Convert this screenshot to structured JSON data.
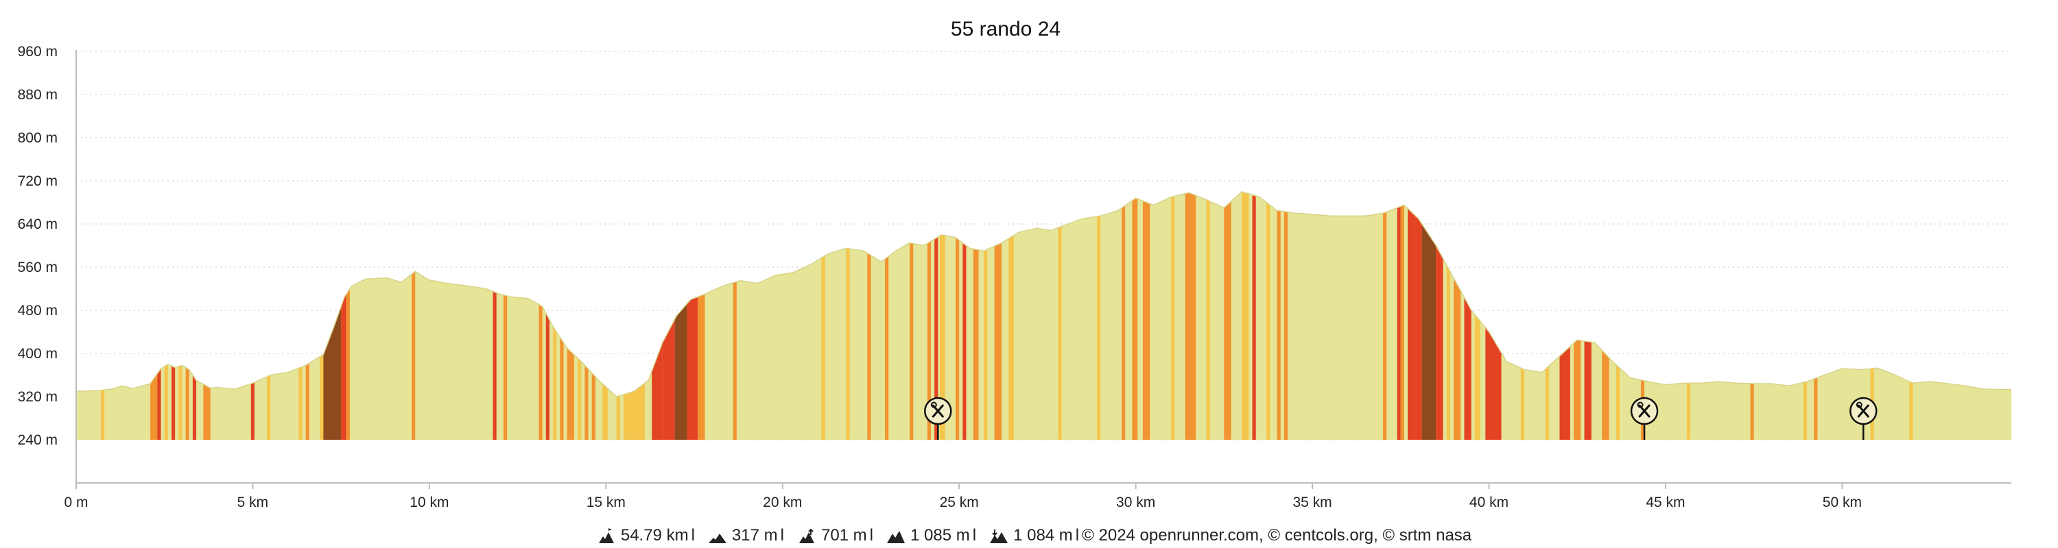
{
  "chart_data": {
    "type": "area",
    "title": "55 rando 24",
    "xlabel": "",
    "ylabel": "",
    "xlim": [
      0,
      54.79
    ],
    "ylim": [
      240,
      960
    ],
    "y_ticks": [
      240,
      320,
      400,
      480,
      560,
      640,
      720,
      800,
      880,
      960
    ],
    "y_tick_labels": [
      "240 m",
      "320 m",
      "400 m",
      "480 m",
      "560 m",
      "640 m",
      "720 m",
      "800 m",
      "880 m",
      "960 m"
    ],
    "x_ticks": [
      0,
      5,
      10,
      15,
      20,
      25,
      30,
      35,
      40,
      45,
      50
    ],
    "x_tick_labels": [
      "0 m",
      "5 km",
      "10 km",
      "15 km",
      "20 km",
      "25 km",
      "30 km",
      "35 km",
      "40 km",
      "45 km",
      "50 km"
    ],
    "grid": "horizontal dotted",
    "fill_color": "#e6e496",
    "slope_colors": [
      "#f5c64c",
      "#f19330",
      "#e34223",
      "#8e4a1d"
    ],
    "profile": {
      "x": [
        0,
        0.6,
        1.0,
        1.3,
        1.6,
        2.1,
        2.4,
        2.6,
        2.8,
        3.0,
        3.2,
        3.4,
        3.8,
        4.0,
        4.5,
        5.0,
        5.5,
        6.0,
        6.5,
        7.0,
        7.3,
        7.6,
        7.8,
        8.2,
        8.8,
        9.2,
        9.6,
        10.0,
        10.5,
        11.0,
        11.6,
        12.0,
        12.3,
        12.8,
        13.2,
        13.5,
        13.9,
        14.3,
        14.8,
        15.3,
        15.8,
        16.2,
        16.6,
        17.0,
        17.4,
        17.8,
        18.3,
        18.8,
        19.3,
        19.8,
        20.3,
        20.8,
        21.3,
        21.8,
        22.3,
        22.8,
        23.2,
        23.6,
        24.0,
        24.5,
        24.9,
        25.3,
        25.7,
        26.2,
        26.7,
        27.2,
        27.6,
        28.0,
        28.5,
        29.0,
        29.5,
        30.0,
        30.5,
        31.0,
        31.5,
        32.0,
        32.5,
        33.0,
        33.5,
        34.0,
        34.5,
        35.0,
        35.5,
        36.0,
        36.5,
        37.0,
        37.6,
        38.0,
        38.5,
        39.0,
        39.5,
        40.0,
        40.5,
        41.0,
        41.5,
        42.0,
        42.5,
        43.0,
        43.5,
        44.0,
        44.5,
        45.0,
        45.5,
        46.0,
        46.5,
        47.0,
        47.5,
        48.0,
        48.5,
        49.0,
        49.5,
        50.0,
        50.5,
        51.0,
        51.5,
        52.0,
        52.5,
        53.0,
        53.5,
        54.0,
        54.79
      ],
      "y": [
        330,
        331,
        334,
        340,
        335,
        344,
        372,
        380,
        374,
        378,
        370,
        350,
        336,
        337,
        334,
        345,
        360,
        365,
        378,
        398,
        450,
        505,
        525,
        538,
        540,
        532,
        552,
        536,
        530,
        526,
        520,
        510,
        505,
        502,
        487,
        450,
        410,
        385,
        350,
        320,
        330,
        350,
        420,
        470,
        500,
        510,
        525,
        535,
        530,
        545,
        550,
        565,
        585,
        595,
        590,
        570,
        590,
        605,
        600,
        620,
        615,
        595,
        590,
        605,
        625,
        632,
        628,
        638,
        650,
        655,
        665,
        688,
        675,
        690,
        698,
        685,
        670,
        700,
        690,
        665,
        660,
        658,
        655,
        655,
        655,
        660,
        675,
        650,
        600,
        540,
        480,
        440,
        385,
        370,
        365,
        395,
        425,
        420,
        385,
        355,
        348,
        342,
        345,
        345,
        348,
        345,
        344,
        344,
        340,
        348,
        360,
        372,
        370,
        373,
        360,
        345,
        348,
        344,
        340,
        334,
        333
      ]
    },
    "slope_bands": [
      {
        "x0": 0.7,
        "x1": 0.8,
        "grade": 1
      },
      {
        "x0": 2.1,
        "x1": 2.3,
        "grade": 2
      },
      {
        "x0": 2.3,
        "x1": 2.4,
        "grade": 3
      },
      {
        "x0": 2.5,
        "x1": 2.6,
        "grade": 1
      },
      {
        "x0": 2.7,
        "x1": 2.8,
        "grade": 3
      },
      {
        "x0": 2.9,
        "x1": 3.0,
        "grade": 1
      },
      {
        "x0": 3.1,
        "x1": 3.2,
        "grade": 2
      },
      {
        "x0": 3.3,
        "x1": 3.4,
        "grade": 3
      },
      {
        "x0": 3.6,
        "x1": 3.8,
        "grade": 2
      },
      {
        "x0": 4.95,
        "x1": 5.05,
        "grade": 3
      },
      {
        "x0": 5.4,
        "x1": 5.5,
        "grade": 1
      },
      {
        "x0": 6.3,
        "x1": 6.4,
        "grade": 1
      },
      {
        "x0": 6.5,
        "x1": 6.6,
        "grade": 2
      },
      {
        "x0": 6.9,
        "x1": 7.0,
        "grade": 1
      },
      {
        "x0": 7.0,
        "x1": 7.5,
        "grade": 4
      },
      {
        "x0": 7.5,
        "x1": 7.65,
        "grade": 3
      },
      {
        "x0": 7.65,
        "x1": 7.75,
        "grade": 2
      },
      {
        "x0": 9.5,
        "x1": 9.6,
        "grade": 2
      },
      {
        "x0": 11.8,
        "x1": 11.9,
        "grade": 3
      },
      {
        "x0": 12.1,
        "x1": 12.2,
        "grade": 2
      },
      {
        "x0": 13.1,
        "x1": 13.2,
        "grade": 2
      },
      {
        "x0": 13.3,
        "x1": 13.4,
        "grade": 3
      },
      {
        "x0": 13.5,
        "x1": 13.6,
        "grade": 1
      },
      {
        "x0": 13.7,
        "x1": 13.8,
        "grade": 2
      },
      {
        "x0": 13.9,
        "x1": 14.1,
        "grade": 2
      },
      {
        "x0": 14.2,
        "x1": 14.3,
        "grade": 1
      },
      {
        "x0": 14.4,
        "x1": 14.5,
        "grade": 2
      },
      {
        "x0": 14.6,
        "x1": 14.7,
        "grade": 2
      },
      {
        "x0": 14.9,
        "x1": 15.05,
        "grade": 1
      },
      {
        "x0": 15.3,
        "x1": 15.4,
        "grade": 1
      },
      {
        "x0": 15.5,
        "x1": 15.6,
        "grade": 1
      },
      {
        "x0": 15.6,
        "x1": 16.1,
        "grade": 1
      },
      {
        "x0": 16.3,
        "x1": 16.6,
        "grade": 3
      },
      {
        "x0": 16.6,
        "x1": 16.95,
        "grade": 3
      },
      {
        "x0": 16.95,
        "x1": 17.3,
        "grade": 4
      },
      {
        "x0": 17.3,
        "x1": 17.6,
        "grade": 3
      },
      {
        "x0": 17.6,
        "x1": 17.8,
        "grade": 2
      },
      {
        "x0": 18.6,
        "x1": 18.7,
        "grade": 2
      },
      {
        "x0": 21.1,
        "x1": 21.2,
        "grade": 1
      },
      {
        "x0": 21.8,
        "x1": 21.9,
        "grade": 1
      },
      {
        "x0": 22.4,
        "x1": 22.5,
        "grade": 2
      },
      {
        "x0": 22.9,
        "x1": 23.0,
        "grade": 2
      },
      {
        "x0": 23.6,
        "x1": 23.7,
        "grade": 2
      },
      {
        "x0": 24.1,
        "x1": 24.2,
        "grade": 2
      },
      {
        "x0": 24.3,
        "x1": 24.4,
        "grade": 3
      },
      {
        "x0": 24.45,
        "x1": 24.6,
        "grade": 1
      },
      {
        "x0": 24.9,
        "x1": 25.0,
        "grade": 2
      },
      {
        "x0": 25.1,
        "x1": 25.2,
        "grade": 3
      },
      {
        "x0": 25.4,
        "x1": 25.55,
        "grade": 2
      },
      {
        "x0": 25.7,
        "x1": 25.8,
        "grade": 1
      },
      {
        "x0": 26.0,
        "x1": 26.2,
        "grade": 2
      },
      {
        "x0": 26.4,
        "x1": 26.55,
        "grade": 1
      },
      {
        "x0": 27.8,
        "x1": 27.9,
        "grade": 1
      },
      {
        "x0": 28.9,
        "x1": 29.0,
        "grade": 1
      },
      {
        "x0": 29.6,
        "x1": 29.7,
        "grade": 2
      },
      {
        "x0": 29.9,
        "x1": 30.05,
        "grade": 2
      },
      {
        "x0": 30.2,
        "x1": 30.4,
        "grade": 2
      },
      {
        "x0": 31.0,
        "x1": 31.1,
        "grade": 1
      },
      {
        "x0": 31.4,
        "x1": 31.7,
        "grade": 2
      },
      {
        "x0": 32.0,
        "x1": 32.1,
        "grade": 1
      },
      {
        "x0": 32.5,
        "x1": 32.7,
        "grade": 2
      },
      {
        "x0": 33.0,
        "x1": 33.2,
        "grade": 1
      },
      {
        "x0": 33.3,
        "x1": 33.4,
        "grade": 3
      },
      {
        "x0": 33.7,
        "x1": 33.8,
        "grade": 1
      },
      {
        "x0": 34.0,
        "x1": 34.1,
        "grade": 2
      },
      {
        "x0": 34.2,
        "x1": 34.3,
        "grade": 2
      },
      {
        "x0": 37.0,
        "x1": 37.1,
        "grade": 2
      },
      {
        "x0": 37.4,
        "x1": 37.5,
        "grade": 3
      },
      {
        "x0": 37.5,
        "x1": 37.6,
        "grade": 2
      },
      {
        "x0": 37.7,
        "x1": 37.9,
        "grade": 3
      },
      {
        "x0": 37.9,
        "x1": 38.1,
        "grade": 3
      },
      {
        "x0": 38.1,
        "x1": 38.5,
        "grade": 4
      },
      {
        "x0": 38.5,
        "x1": 38.7,
        "grade": 3
      },
      {
        "x0": 38.8,
        "x1": 38.9,
        "grade": 1
      },
      {
        "x0": 39.0,
        "x1": 39.2,
        "grade": 2
      },
      {
        "x0": 39.3,
        "x1": 39.5,
        "grade": 3
      },
      {
        "x0": 39.6,
        "x1": 39.75,
        "grade": 1
      },
      {
        "x0": 39.9,
        "x1": 40.35,
        "grade": 3
      },
      {
        "x0": 40.9,
        "x1": 41.0,
        "grade": 1
      },
      {
        "x0": 41.6,
        "x1": 41.7,
        "grade": 1
      },
      {
        "x0": 42.0,
        "x1": 42.3,
        "grade": 3
      },
      {
        "x0": 42.4,
        "x1": 42.6,
        "grade": 2
      },
      {
        "x0": 42.7,
        "x1": 42.9,
        "grade": 3
      },
      {
        "x0": 43.2,
        "x1": 43.4,
        "grade": 2
      },
      {
        "x0": 43.6,
        "x1": 43.7,
        "grade": 1
      },
      {
        "x0": 44.3,
        "x1": 44.4,
        "grade": 2
      },
      {
        "x0": 45.6,
        "x1": 45.7,
        "grade": 1
      },
      {
        "x0": 47.4,
        "x1": 47.5,
        "grade": 2
      },
      {
        "x0": 48.9,
        "x1": 49.0,
        "grade": 1
      },
      {
        "x0": 49.2,
        "x1": 49.3,
        "grade": 2
      },
      {
        "x0": 50.8,
        "x1": 50.9,
        "grade": 1
      },
      {
        "x0": 51.9,
        "x1": 52.0,
        "grade": 1
      }
    ],
    "markers": [
      {
        "x": 24.4,
        "icon": "tools-icon"
      },
      {
        "x": 44.4,
        "icon": "tools-icon"
      },
      {
        "x": 50.6,
        "icon": "tools-icon"
      }
    ]
  },
  "footer": {
    "distance": "54.79 km",
    "elev_gain_min": "317 m",
    "elev_gain": "701 m",
    "elev_max": "1 085 m",
    "elev_loss": "1 084 m",
    "credits": "© 2024 openrunner.com, © centcols.org, © srtm nasa",
    "separator": "l"
  }
}
